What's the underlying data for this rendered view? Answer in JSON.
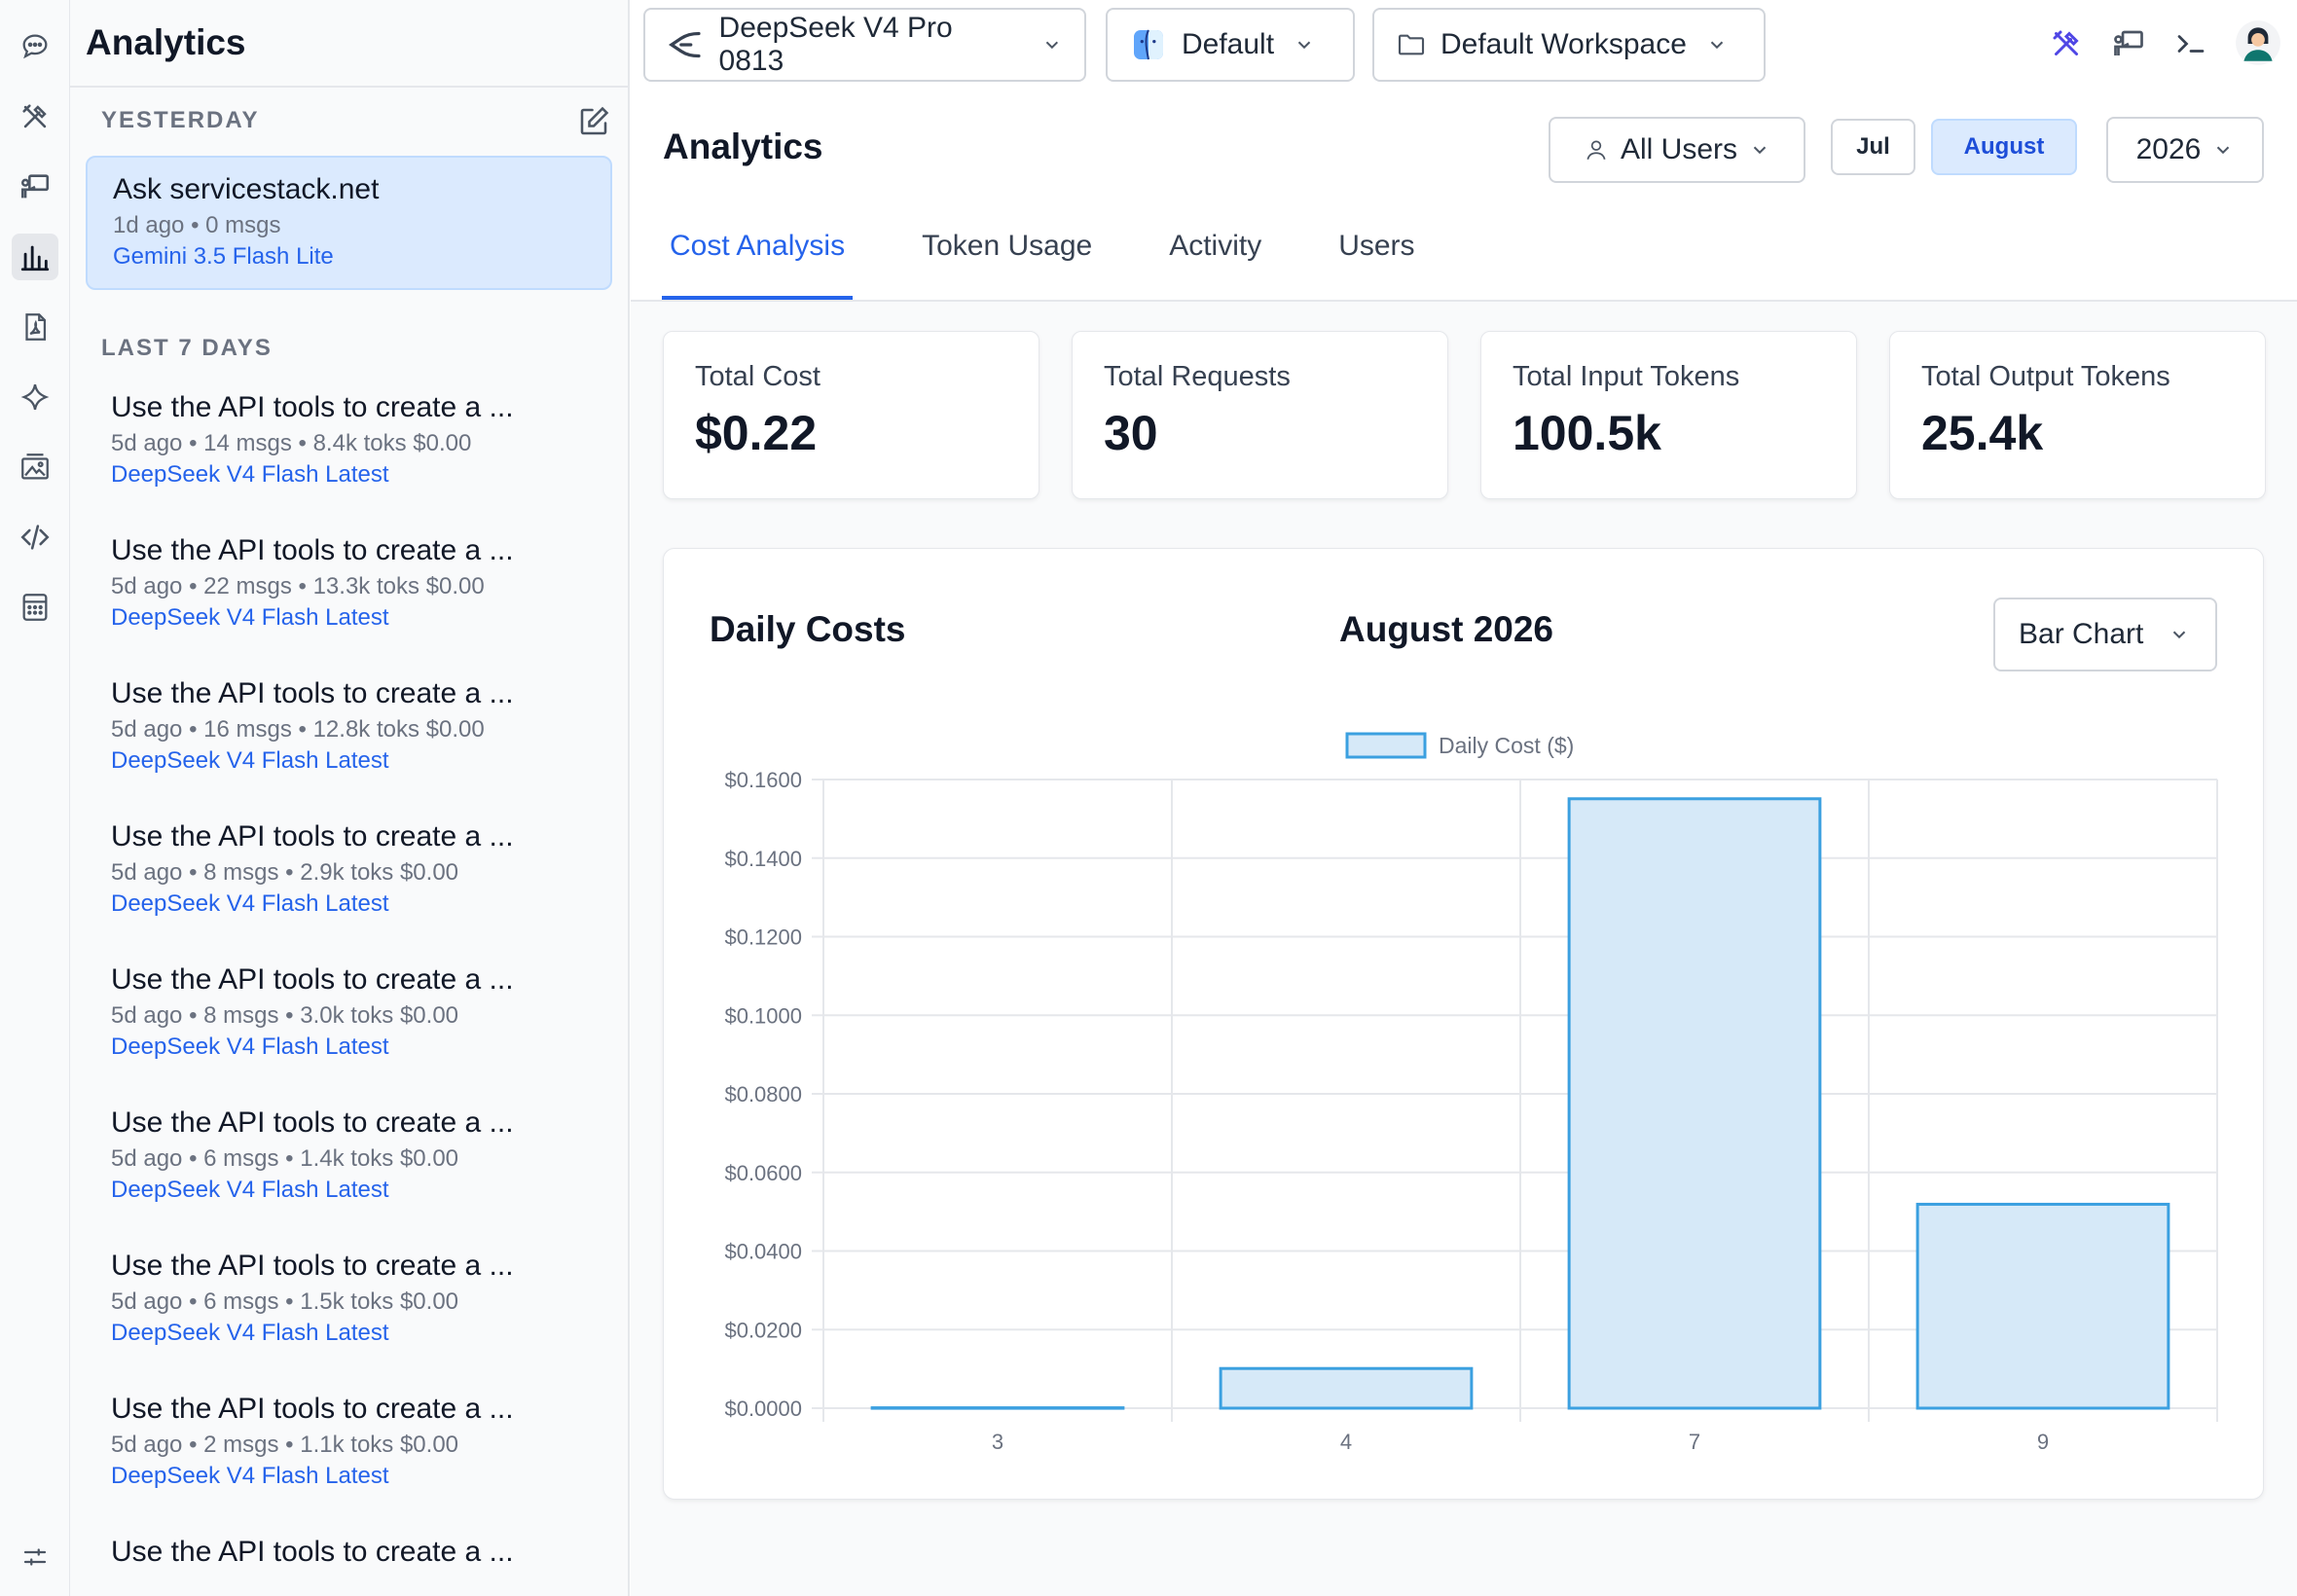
{
  "rail": {
    "icons": [
      "chat-icon",
      "tools-icon",
      "presentation-icon",
      "analytics-icon",
      "pdf-icon",
      "sparkle-icon",
      "image-gallery-icon",
      "code-icon",
      "calculator-icon"
    ],
    "bottom_icon": "settings-sliders-icon"
  },
  "sidebar": {
    "title": "Analytics",
    "groups": [
      {
        "label": "YESTERDAY",
        "threads": [
          {
            "title": "Ask servicestack.net",
            "meta": "1d ago • 0 msgs",
            "model": "Gemini 3.5 Flash Lite",
            "selected": true
          }
        ]
      },
      {
        "label": "LAST 7 DAYS",
        "threads": [
          {
            "title": "Use the API tools to create a ...",
            "meta": "5d ago • 14 msgs • 8.4k toks $0.00",
            "model": "DeepSeek V4 Flash Latest"
          },
          {
            "title": "Use the API tools to create a ...",
            "meta": "5d ago • 22 msgs • 13.3k toks $0.00",
            "model": "DeepSeek V4 Flash Latest"
          },
          {
            "title": "Use the API tools to create a ...",
            "meta": "5d ago • 16 msgs • 12.8k toks $0.00",
            "model": "DeepSeek V4 Flash Latest"
          },
          {
            "title": "Use the API tools to create a ...",
            "meta": "5d ago • 8 msgs • 2.9k toks $0.00",
            "model": "DeepSeek V4 Flash Latest"
          },
          {
            "title": "Use the API tools to create a ...",
            "meta": "5d ago • 8 msgs • 3.0k toks $0.00",
            "model": "DeepSeek V4 Flash Latest"
          },
          {
            "title": "Use the API tools to create a ...",
            "meta": "5d ago • 6 msgs • 1.4k toks $0.00",
            "model": "DeepSeek V4 Flash Latest"
          },
          {
            "title": "Use the API tools to create a ...",
            "meta": "5d ago • 6 msgs • 1.5k toks $0.00",
            "model": "DeepSeek V4 Flash Latest"
          },
          {
            "title": "Use the API tools to create a ...",
            "meta": "5d ago • 2 msgs • 1.1k toks $0.00",
            "model": "DeepSeek V4 Flash Latest"
          },
          {
            "title": "Use the API tools to create a ...",
            "meta": "",
            "model": ""
          }
        ]
      }
    ]
  },
  "topbar": {
    "model": "DeepSeek V4 Pro 0813",
    "profile": "Default",
    "workspace": "Default Workspace"
  },
  "analytics": {
    "title": "Analytics",
    "user_filter": "All Users",
    "prev_month": "Jul",
    "month": "August",
    "year": "2026",
    "tabs": [
      "Cost Analysis",
      "Token Usage",
      "Activity",
      "Users"
    ],
    "active_tab": "Cost Analysis",
    "stats": [
      {
        "label": "Total Cost",
        "value": "$0.22"
      },
      {
        "label": "Total Requests",
        "value": "30"
      },
      {
        "label": "Total Input Tokens",
        "value": "100.5k"
      },
      {
        "label": "Total Output Tokens",
        "value": "25.4k"
      }
    ],
    "chart_card": {
      "title": "Daily Costs",
      "period": "August 2026",
      "chart_type": "Bar Chart"
    }
  },
  "colors": {
    "accent": "#2563eb",
    "bar_fill": "#d6e9f8",
    "bar_stroke": "#3ba0e0",
    "grid": "#e5e7eb"
  },
  "chart_data": {
    "type": "bar",
    "categories": [
      "3",
      "4",
      "7",
      "9"
    ],
    "series": [
      {
        "name": "Daily Cost ($)",
        "values": [
          0.0001,
          0.0101,
          0.1551,
          0.0519
        ]
      }
    ],
    "ylim": [
      0,
      0.16
    ],
    "yticks": [
      "$0.1600",
      "$0.1400",
      "$0.1200",
      "$0.1000",
      "$0.0800",
      "$0.0600",
      "$0.0400",
      "$0.0200",
      "$0.0000"
    ],
    "legend": "top-center",
    "grid": true
  }
}
